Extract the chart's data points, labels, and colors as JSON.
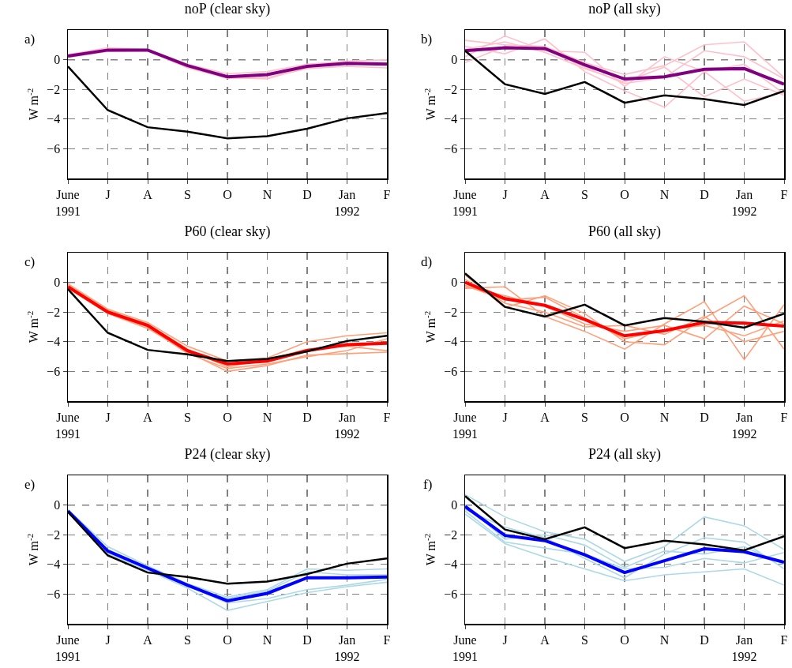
{
  "chart_data": [
    {
      "type": "line",
      "title": "noP (clear sky)",
      "ylabel": "W m$^{-2}$",
      "annotations": [
        "a)"
      ],
      "categories": [
        "June\n1991",
        "J",
        "A",
        "S",
        "O",
        "N",
        "D",
        "Jan\n1992",
        "F"
      ],
      "ylim": [
        -8,
        2
      ],
      "yticks": [
        -6,
        -4,
        -2,
        0
      ],
      "grid": true,
      "line_style": "solid",
      "ref_lines": [
        {
          "axis": "y",
          "value": 0,
          "color": "#000000",
          "line_style": "dashed"
        }
      ],
      "series": [
        {
          "color": "#ffc0cb",
          "values": [
            0.35,
            0.8,
            0.7,
            -0.3,
            -0.95,
            -0.8,
            -0.3,
            -0.1,
            0.0
          ]
        },
        {
          "color": "#ffc0cb",
          "values": [
            0.15,
            0.55,
            0.6,
            -0.55,
            -1.25,
            -1.2,
            -0.6,
            -0.45,
            -0.55
          ]
        },
        {
          "color": "#ffc0cb",
          "values": [
            0.2,
            0.6,
            0.7,
            -0.35,
            -1.2,
            -1.3,
            -0.5,
            -0.2,
            -0.2
          ]
        },
        {
          "color": "#800080",
          "values": [
            0.25,
            0.65,
            0.65,
            -0.4,
            -1.15,
            -1.0,
            -0.45,
            -0.25,
            -0.3
          ]
        },
        {
          "color": "#000000",
          "values": [
            -0.45,
            -3.4,
            -4.55,
            -4.85,
            -5.3,
            -5.15,
            -4.65,
            -3.95,
            -3.6
          ]
        }
      ]
    },
    {
      "type": "line",
      "title": "noP (all sky)",
      "ylabel": "W m$^{-2}$",
      "annotations": [
        "b)"
      ],
      "categories": [
        "June\n1991",
        "J",
        "A",
        "S",
        "O",
        "N",
        "D",
        "Jan\n1992",
        "F"
      ],
      "ylim": [
        -8,
        2
      ],
      "yticks": [
        -6,
        -4,
        -2,
        0
      ],
      "grid": true,
      "line_style": "solid",
      "ref_lines": [
        {
          "axis": "y",
          "value": 0,
          "color": "#000000",
          "line_style": "dashed"
        }
      ],
      "series": [
        {
          "color": "#ffc0cb",
          "values": [
            1.3,
            1.0,
            0.9,
            -0.2,
            -1.0,
            -0.4,
            1.0,
            1.2,
            -1.2
          ]
        },
        {
          "color": "#ffc0cb",
          "values": [
            0.2,
            1.6,
            0.6,
            0.5,
            -1.8,
            0.2,
            -0.8,
            -0.3,
            -2.3
          ]
        },
        {
          "color": "#ffc0cb",
          "values": [
            0.9,
            0.4,
            1.4,
            -0.8,
            -2.1,
            -3.2,
            -0.8,
            -2.8,
            -2.2
          ]
        },
        {
          "color": "#ffc0cb",
          "values": [
            -0.2,
            0.9,
            0.7,
            -0.5,
            -1.6,
            -1.2,
            0.6,
            0.2,
            -1.3
          ]
        },
        {
          "color": "#ffc0cb",
          "values": [
            0.7,
            1.2,
            0.5,
            -0.6,
            -1.5,
            -0.5,
            -2.5,
            -1.3,
            -2.4
          ]
        },
        {
          "color": "#800080",
          "values": [
            0.6,
            0.8,
            0.75,
            -0.35,
            -1.3,
            -1.15,
            -0.65,
            -0.6,
            -1.65
          ]
        },
        {
          "color": "#000000",
          "values": [
            0.6,
            -1.65,
            -2.3,
            -1.5,
            -2.9,
            -2.4,
            -2.65,
            -3.05,
            -2.1
          ]
        }
      ]
    },
    {
      "type": "line",
      "title": "P60 (clear sky)",
      "ylabel": "W m$^{-2}$",
      "annotations": [
        "c)"
      ],
      "categories": [
        "June\n1991",
        "J",
        "A",
        "S",
        "O",
        "N",
        "D",
        "Jan\n1992",
        "F"
      ],
      "ylim": [
        -8,
        2
      ],
      "yticks": [
        -6,
        -4,
        -2,
        0
      ],
      "grid": true,
      "line_style": "solid",
      "ref_lines": [
        {
          "axis": "y",
          "value": 0,
          "color": "#000000",
          "line_style": "dashed"
        }
      ],
      "series": [
        {
          "color": "#ffa07a",
          "values": [
            -0.1,
            -1.8,
            -2.7,
            -4.3,
            -5.3,
            -5.1,
            -4.0,
            -3.6,
            -3.4
          ]
        },
        {
          "color": "#ffa07a",
          "values": [
            -0.4,
            -2.1,
            -3.1,
            -4.7,
            -6.0,
            -5.6,
            -4.9,
            -4.8,
            -4.7
          ]
        },
        {
          "color": "#ffa07a",
          "values": [
            -0.2,
            -1.9,
            -2.8,
            -4.5,
            -5.7,
            -5.2,
            -4.5,
            -4.3,
            -4.6
          ]
        },
        {
          "color": "#ffa07a",
          "values": [
            -0.35,
            -2.05,
            -3.0,
            -4.8,
            -5.8,
            -5.5,
            -5.0,
            -4.6,
            -3.8
          ]
        },
        {
          "color": "#ff0000",
          "values": [
            -0.3,
            -2.0,
            -2.9,
            -4.6,
            -5.5,
            -5.3,
            -4.6,
            -4.2,
            -4.1
          ]
        },
        {
          "color": "#000000",
          "values": [
            -0.45,
            -3.4,
            -4.55,
            -4.85,
            -5.3,
            -5.15,
            -4.65,
            -3.95,
            -3.6
          ]
        }
      ]
    },
    {
      "type": "line",
      "title": "P60 (all sky)",
      "ylabel": "W m$^{-2}$",
      "annotations": [
        "d)"
      ],
      "categories": [
        "June\n1991",
        "J",
        "A",
        "S",
        "O",
        "N",
        "D",
        "Jan\n1992",
        "F"
      ],
      "ylim": [
        -8,
        2
      ],
      "yticks": [
        -6,
        -4,
        -2,
        0
      ],
      "grid": true,
      "line_style": "solid",
      "ref_lines": [
        {
          "axis": "y",
          "value": 0,
          "color": "#000000",
          "line_style": "dashed"
        }
      ],
      "series": [
        {
          "color": "#ffa07a",
          "values": [
            -0.4,
            -0.3,
            -2.3,
            -3.3,
            -4.5,
            -2.8,
            -1.3,
            -5.2,
            -1.5
          ]
        },
        {
          "color": "#ffa07a",
          "values": [
            0.5,
            -1.7,
            -0.9,
            -2.1,
            -4.0,
            -4.2,
            -2.4,
            -0.9,
            -4.5
          ]
        },
        {
          "color": "#ffa07a",
          "values": [
            -0.3,
            -0.9,
            -1.6,
            -2.8,
            -3.3,
            -2.9,
            -3.8,
            -1.6,
            -2.8
          ]
        },
        {
          "color": "#ffa07a",
          "values": [
            0.2,
            -1.4,
            -2.0,
            -3.0,
            -2.9,
            -3.5,
            -2.3,
            -4.0,
            -3.3
          ]
        },
        {
          "color": "#ffa07a",
          "values": [
            -0.2,
            -1.2,
            -1.0,
            -2.4,
            -3.8,
            -3.2,
            -2.9,
            -3.6,
            -2.6
          ]
        },
        {
          "color": "#ff0000",
          "values": [
            0.0,
            -1.1,
            -1.55,
            -2.5,
            -3.6,
            -3.25,
            -2.7,
            -2.75,
            -2.95
          ]
        },
        {
          "color": "#000000",
          "values": [
            0.6,
            -1.65,
            -2.3,
            -1.5,
            -2.9,
            -2.4,
            -2.65,
            -3.05,
            -2.1
          ]
        }
      ]
    },
    {
      "type": "line",
      "title": "P24 (clear sky)",
      "ylabel": "W m$^{-2}$",
      "annotations": [
        "e)"
      ],
      "categories": [
        "June\n1991",
        "J",
        "A",
        "S",
        "O",
        "N",
        "D",
        "Jan\n1992",
        "F"
      ],
      "ylim": [
        -8,
        2
      ],
      "yticks": [
        -6,
        -4,
        -2,
        0
      ],
      "grid": true,
      "line_style": "solid",
      "ref_lines": [
        {
          "axis": "y",
          "value": 0,
          "color": "#000000",
          "line_style": "dashed"
        }
      ],
      "series": [
        {
          "color": "#add8e6",
          "values": [
            -0.3,
            -2.8,
            -4.1,
            -5.3,
            -6.2,
            -5.7,
            -4.3,
            -4.4,
            -4.3
          ]
        },
        {
          "color": "#add8e6",
          "values": [
            -0.5,
            -3.3,
            -4.4,
            -5.6,
            -7.1,
            -6.5,
            -5.9,
            -5.5,
            -5.2
          ]
        },
        {
          "color": "#add8e6",
          "values": [
            -0.35,
            -3.0,
            -4.2,
            -5.5,
            -6.3,
            -5.8,
            -4.5,
            -4.7,
            -4.7
          ]
        },
        {
          "color": "#add8e6",
          "values": [
            -0.45,
            -3.2,
            -4.3,
            -5.45,
            -6.6,
            -6.3,
            -5.7,
            -5.4,
            -5.0
          ]
        },
        {
          "color": "#0000ff",
          "values": [
            -0.4,
            -3.1,
            -4.25,
            -5.4,
            -6.45,
            -5.95,
            -4.9,
            -4.9,
            -4.85
          ]
        },
        {
          "color": "#000000",
          "values": [
            -0.45,
            -3.4,
            -4.55,
            -4.85,
            -5.3,
            -5.15,
            -4.65,
            -3.95,
            -3.6
          ]
        }
      ]
    },
    {
      "type": "line",
      "title": "P24 (all sky)",
      "ylabel": "W m$^{-2}$",
      "annotations": [
        "f)"
      ],
      "categories": [
        "June\n1991",
        "J",
        "A",
        "S",
        "O",
        "N",
        "D",
        "Jan\n1992",
        "F"
      ],
      "ylim": [
        -8,
        2
      ],
      "yticks": [
        -6,
        -4,
        -2,
        0
      ],
      "grid": true,
      "line_style": "solid",
      "ref_lines": [
        {
          "axis": "y",
          "value": 0,
          "color": "#000000",
          "line_style": "dashed"
        }
      ],
      "series": [
        {
          "color": "#add8e6",
          "values": [
            0.7,
            -0.8,
            -1.8,
            -2.3,
            -3.8,
            -2.8,
            -0.8,
            -1.4,
            -3.0
          ]
        },
        {
          "color": "#add8e6",
          "values": [
            -0.6,
            -2.6,
            -3.5,
            -4.3,
            -5.1,
            -4.7,
            -4.5,
            -4.3,
            -5.4
          ]
        },
        {
          "color": "#add8e6",
          "values": [
            -0.3,
            -1.5,
            -2.2,
            -3.6,
            -4.9,
            -3.3,
            -2.2,
            -2.5,
            -4.3
          ]
        },
        {
          "color": "#add8e6",
          "values": [
            -0.4,
            -2.5,
            -2.9,
            -3.3,
            -4.3,
            -4.2,
            -3.6,
            -3.9,
            -3.2
          ]
        },
        {
          "color": "#add8e6",
          "values": [
            0.0,
            -2.3,
            -2.0,
            -2.7,
            -4.2,
            -3.1,
            -3.3,
            -2.8,
            -4.0
          ]
        },
        {
          "color": "#0000ff",
          "values": [
            -0.1,
            -2.05,
            -2.4,
            -3.35,
            -4.55,
            -3.75,
            -2.95,
            -3.15,
            -3.85
          ]
        },
        {
          "color": "#000000",
          "values": [
            0.6,
            -1.65,
            -2.3,
            -1.5,
            -2.9,
            -2.4,
            -2.65,
            -3.05,
            -2.1
          ]
        }
      ]
    }
  ]
}
